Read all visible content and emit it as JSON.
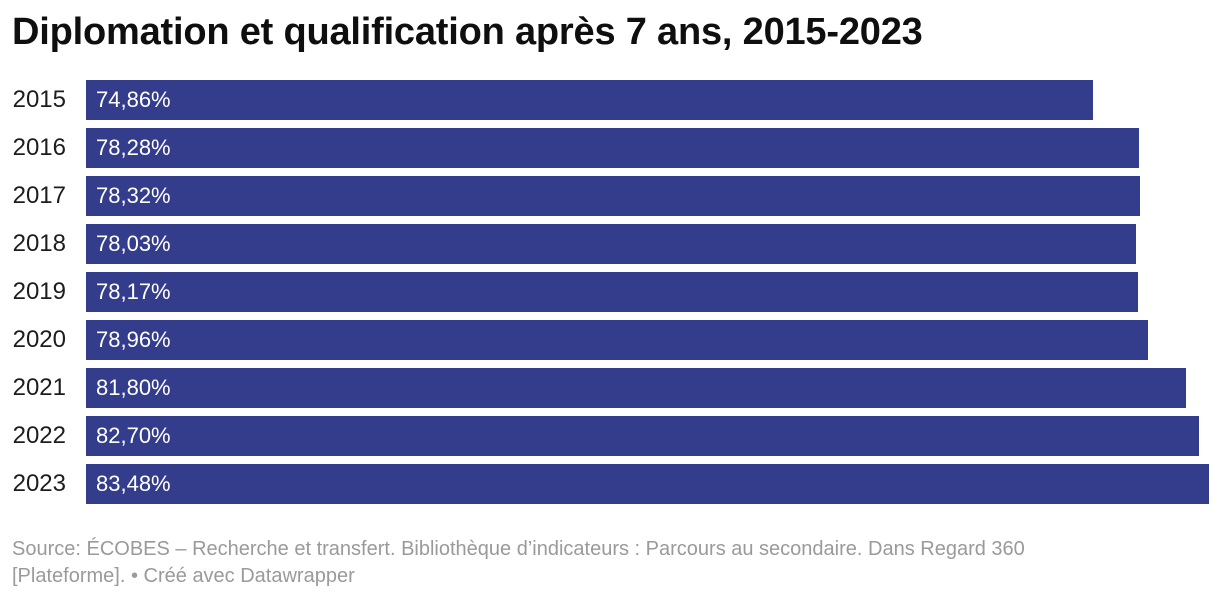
{
  "chart_data": {
    "type": "bar",
    "orientation": "horizontal",
    "title": "Diplomation et qualification après 7 ans, 2015-2023",
    "categories": [
      "2015",
      "2016",
      "2017",
      "2018",
      "2019",
      "2020",
      "2021",
      "2022",
      "2023"
    ],
    "values": [
      74.86,
      78.28,
      78.32,
      78.03,
      78.17,
      78.96,
      81.8,
      82.7,
      83.48
    ],
    "value_labels": [
      "74,86%",
      "78,28%",
      "78,32%",
      "78,03%",
      "78,17%",
      "78,96%",
      "81,80%",
      "82,70%",
      "83,48%"
    ],
    "xlim": [
      0,
      83.48
    ],
    "grid": false,
    "legend": "none",
    "bar_color": "#333d8c",
    "value_label_position": "inside-left"
  },
  "footer": {
    "source": "Source: ÉCOBES – Recherche et transfert. Bibliothèque d’indicateurs : Parcours au secondaire. Dans Regard 360 [Plateforme].",
    "separator": "•",
    "credit": "Créé avec Datawrapper"
  },
  "colors": {
    "bar": "#333d8c",
    "title_text": "#0f0f0f",
    "category_label_text": "#1d1d1d",
    "value_label_text": "#ffffff",
    "footer_text": "#9a9a9a",
    "background": "#ffffff"
  }
}
